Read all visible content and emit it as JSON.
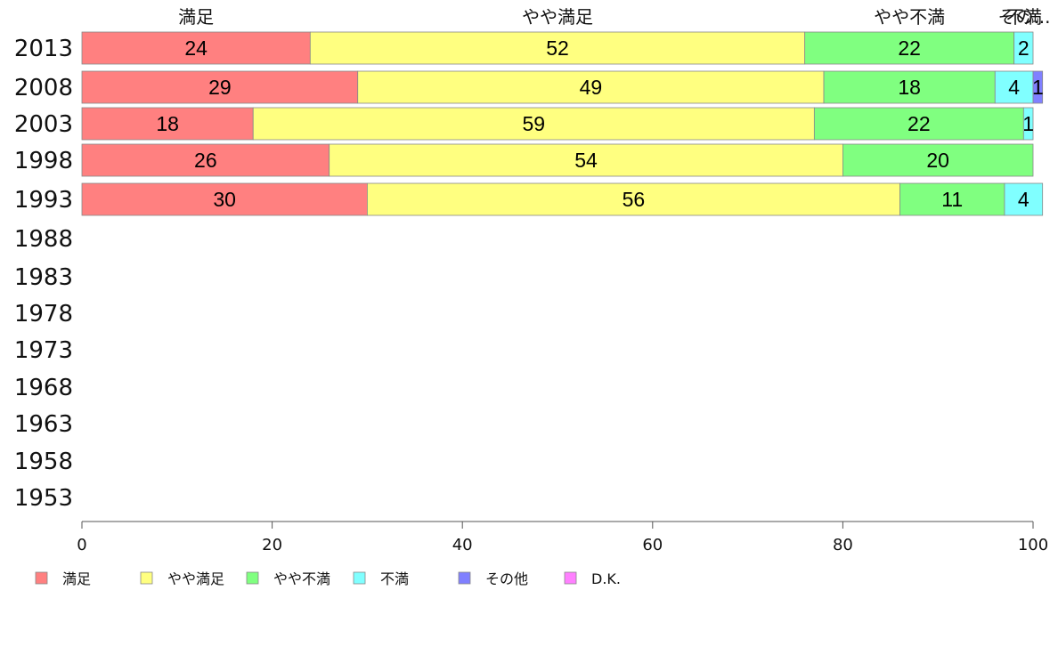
{
  "chart_data": {
    "type": "bar",
    "orientation": "horizontal",
    "stacked": true,
    "categories": [
      "2013",
      "2008",
      "2003",
      "1998",
      "1993",
      "1988",
      "1983",
      "1978",
      "1973",
      "1968",
      "1963",
      "1958",
      "1953"
    ],
    "series": [
      {
        "name": "満足",
        "color": "#ff8080",
        "values": [
          24,
          29,
          18,
          26,
          30,
          null,
          null,
          null,
          null,
          null,
          null,
          null,
          null
        ]
      },
      {
        "name": "やや満足",
        "color": "#ffff80",
        "values": [
          52,
          49,
          59,
          54,
          56,
          null,
          null,
          null,
          null,
          null,
          null,
          null,
          null
        ]
      },
      {
        "name": "やや不満",
        "color": "#80ff80",
        "values": [
          22,
          18,
          22,
          20,
          11,
          null,
          null,
          null,
          null,
          null,
          null,
          null,
          null
        ]
      },
      {
        "name": "不満",
        "color": "#80ffff",
        "values": [
          2,
          4,
          1,
          0,
          4,
          null,
          null,
          null,
          null,
          null,
          null,
          null,
          null
        ]
      },
      {
        "name": "その他",
        "color": "#8080ff",
        "values": [
          0,
          1,
          0,
          0,
          0,
          null,
          null,
          null,
          null,
          null,
          null,
          null,
          null
        ]
      },
      {
        "name": "D.K.",
        "color": "#ff80ff",
        "values": [
          0,
          0,
          0,
          0,
          0,
          null,
          null,
          null,
          null,
          null,
          null,
          null,
          null
        ]
      }
    ],
    "top_labels": [
      "満足",
      "やや満足",
      "やや不満",
      "不満",
      "その..."
    ],
    "x_ticks": [
      0,
      20,
      40,
      60,
      80,
      100
    ],
    "xlim": [
      0,
      100
    ],
    "grid": false,
    "legend_position": "bottom-left"
  }
}
